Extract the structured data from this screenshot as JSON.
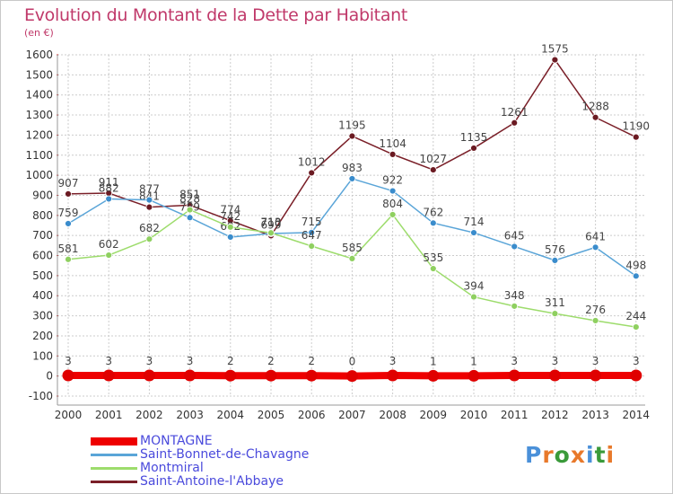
{
  "chart_data": {
    "type": "line",
    "title": "Evolution du Montant de la Dette par Habitant",
    "subtitle": "(en €)",
    "x": [
      "2000",
      "2001",
      "2002",
      "2003",
      "2004",
      "2005",
      "2006",
      "2007",
      "2008",
      "2009",
      "2010",
      "2011",
      "2012",
      "2013",
      "2014"
    ],
    "ylim": [
      -100,
      1600
    ],
    "yticks": [
      -100,
      0,
      100,
      200,
      300,
      400,
      500,
      600,
      700,
      800,
      900,
      1000,
      1100,
      1200,
      1300,
      1400,
      1500,
      1600
    ],
    "grid": true,
    "legend_position": "bottom-left",
    "series": [
      {
        "name": "Saint-Antoine-l'Abbaye",
        "color": "#7a1f28",
        "marker": "#6b1a22",
        "values": [
          907,
          911,
          841,
          851,
          774,
          699,
          1012,
          1195,
          1104,
          1027,
          1135,
          1261,
          1575,
          1288,
          1190
        ]
      },
      {
        "name": "Saint-Bonnet-de-Chavagne",
        "color": "#5aa5d8",
        "marker": "#3a8ccc",
        "values": [
          759,
          882,
          877,
          789,
          692,
          710,
          715,
          983,
          922,
          762,
          714,
          645,
          576,
          641,
          498
        ]
      },
      {
        "name": "Montmiral",
        "color": "#9ddc6c",
        "marker": "#8fd060",
        "values": [
          581,
          602,
          682,
          828,
          742,
          713,
          647,
          585,
          804,
          535,
          394,
          348,
          311,
          276,
          244
        ]
      },
      {
        "name": "MONTAGNE",
        "color": "#ee0000",
        "marker": "#e00000",
        "values": [
          3,
          3,
          3,
          3,
          2,
          2,
          2,
          0,
          3,
          1,
          1,
          3,
          3,
          3,
          3
        ]
      }
    ]
  },
  "legend": {
    "items": [
      {
        "label": "MONTAGNE",
        "color": "#ee0000",
        "thick": true
      },
      {
        "label": "Saint-Bonnet-de-Chavagne",
        "color": "#5aa5d8",
        "thick": false
      },
      {
        "label": "Montmiral",
        "color": "#9ddc6c",
        "thick": false
      },
      {
        "label": "Saint-Antoine-l'Abbaye",
        "color": "#7a1f28",
        "thick": false
      }
    ]
  },
  "logo": {
    "text": "Proxiti",
    "letter_colors": [
      "#4a90d9",
      "#e8792b",
      "#3a9a3a",
      "#e8792b",
      "#4a90d9",
      "#3a9a3a",
      "#e8792b"
    ]
  }
}
